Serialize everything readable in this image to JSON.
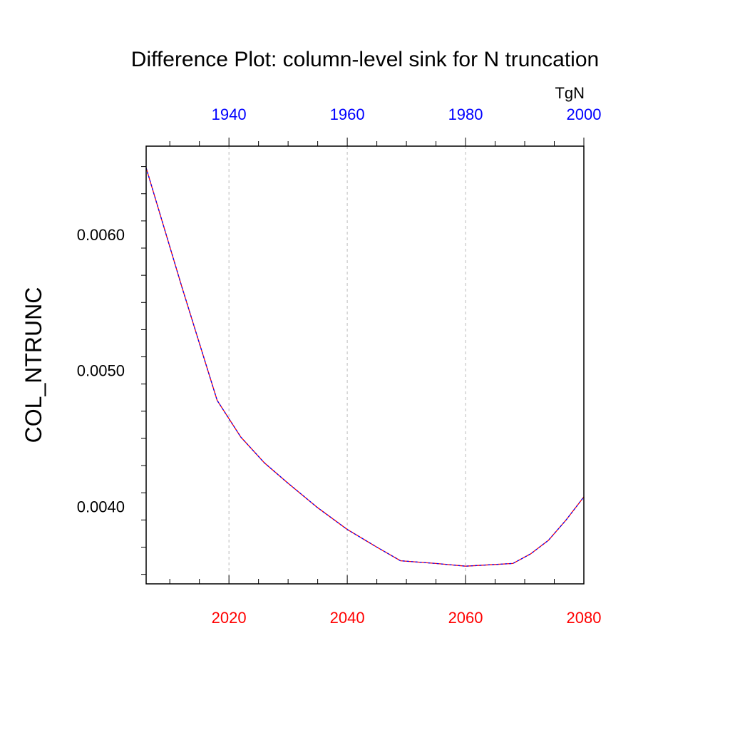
{
  "chart_data": {
    "type": "line",
    "title": "Difference Plot: column-level sink for N truncation",
    "ylabel": "COL_NTRUNC",
    "units": "TgN",
    "xlim": [
      2006,
      2080
    ],
    "ylim": [
      0.00343,
      0.00665
    ],
    "grid": "vertical dashed",
    "x_bottom_ticks": [
      "2020",
      "2040",
      "2060",
      "2080"
    ],
    "x_top_ticks": [
      "1940",
      "1960",
      "1980",
      "2000"
    ],
    "x_top_offset_years": -80,
    "y_ticks": [
      "0.0040",
      "0.0050",
      "0.0060"
    ],
    "series": [
      {
        "color": "#ff0000",
        "x": [
          2006,
          2012,
          2018,
          2022,
          2026,
          2030,
          2035,
          2040,
          2045,
          2049,
          2055,
          2060,
          2064,
          2068,
          2071,
          2074,
          2077,
          2080
        ],
        "values": [
          0.00649,
          0.00562,
          0.00478,
          0.00451,
          0.00432,
          0.00417,
          0.00399,
          0.00383,
          0.0037,
          0.0036,
          0.00358,
          0.00356,
          0.00357,
          0.00358,
          0.00365,
          0.00375,
          0.0039,
          0.00407
        ]
      },
      {
        "color": "#0000ff",
        "x": [
          2006,
          2012,
          2018,
          2022,
          2026,
          2030,
          2035,
          2040,
          2045,
          2049,
          2055,
          2060,
          2064,
          2068,
          2071,
          2074,
          2077,
          2080
        ],
        "values": [
          0.00649,
          0.00562,
          0.00478,
          0.00451,
          0.00432,
          0.00417,
          0.00399,
          0.00383,
          0.0037,
          0.0036,
          0.00358,
          0.00356,
          0.00357,
          0.00358,
          0.00365,
          0.00375,
          0.0039,
          0.00407
        ]
      }
    ],
    "colors": {
      "bottom_axis": "#ff0000",
      "top_axis": "#0000ff",
      "grid": "#bbbbbb",
      "axes": "#000000"
    }
  }
}
